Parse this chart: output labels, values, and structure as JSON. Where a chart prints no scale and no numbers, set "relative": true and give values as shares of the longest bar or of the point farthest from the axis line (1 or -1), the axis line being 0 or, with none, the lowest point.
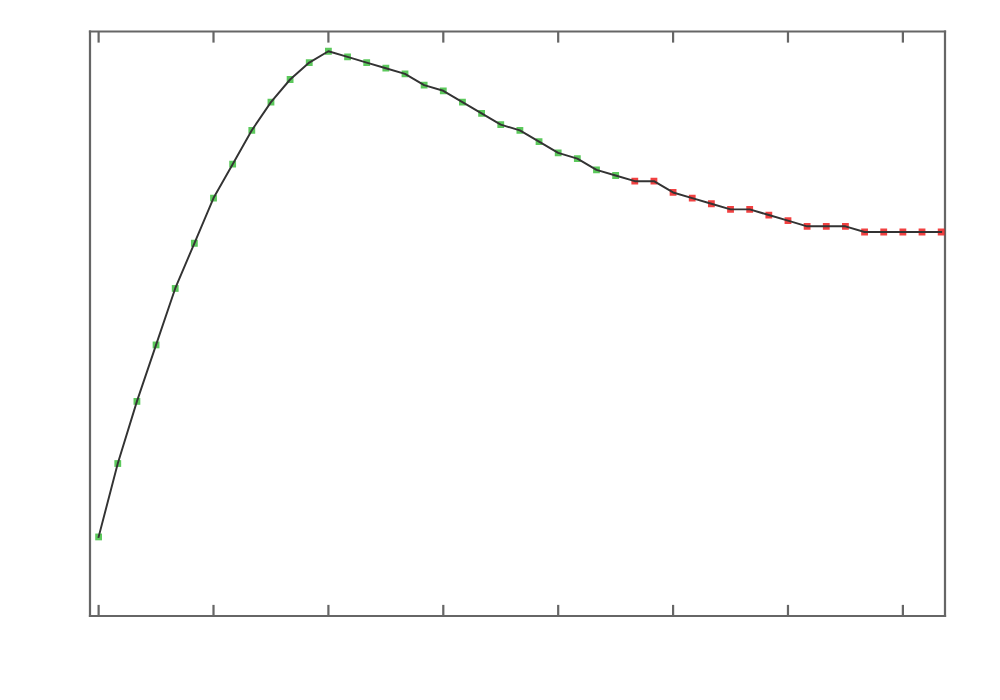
{
  "chart_data": {
    "type": "line",
    "relative": true,
    "grid": false,
    "legend": false,
    "marker": "square",
    "line_style": "solid",
    "categories": [
      null,
      null,
      null,
      null,
      null,
      null,
      null,
      null,
      null,
      null,
      null,
      null,
      null,
      null,
      null,
      null,
      null,
      null,
      null,
      null,
      null,
      null,
      null,
      null,
      null,
      null,
      null,
      null,
      null,
      null,
      null,
      null,
      null,
      null,
      null,
      null,
      null,
      null,
      null,
      null,
      null,
      null,
      null,
      null,
      null
    ],
    "series": [
      {
        "color": "#333333",
        "values": [
          0.14,
          0.27,
          0.38,
          0.48,
          0.58,
          0.66,
          0.74,
          0.8,
          0.86,
          0.91,
          0.95,
          0.98,
          1.0,
          0.99,
          0.98,
          0.97,
          0.96,
          0.94,
          0.93,
          0.91,
          0.89,
          0.87,
          0.86,
          0.84,
          0.82,
          0.81,
          0.79,
          0.78,
          0.77,
          0.77,
          0.75,
          0.74,
          0.73,
          0.72,
          0.72,
          0.71,
          0.7,
          0.69,
          0.69,
          0.69,
          0.68,
          0.68,
          0.68,
          0.68,
          0.68
        ],
        "colors": [
          "#33bb33",
          "#33bb33",
          "#33bb33",
          "#33bb33",
          "#33bb33",
          "#33bb33",
          "#33bb33",
          "#33bb33",
          "#33bb33",
          "#33bb33",
          "#33bb33",
          "#33bb33",
          "#33bb33",
          "#33bb33",
          "#33bb33",
          "#33bb33",
          "#33bb33",
          "#33bb33",
          "#33bb33",
          "#33bb33",
          "#33bb33",
          "#33bb33",
          "#33bb33",
          "#33bb33",
          "#33bb33",
          "#33bb33",
          "#33bb33",
          "#33bb33",
          "#ee1111",
          "#ee1111",
          "#ee1111",
          "#ee1111",
          "#ee1111",
          "#ee1111",
          "#ee1111",
          "#ee1111",
          "#ee1111",
          "#ee1111",
          "#ee1111",
          "#ee1111",
          "#ee1111",
          "#ee1111",
          "#ee1111",
          "#ee1111",
          "#ee1111"
        ]
      }
    ]
  }
}
